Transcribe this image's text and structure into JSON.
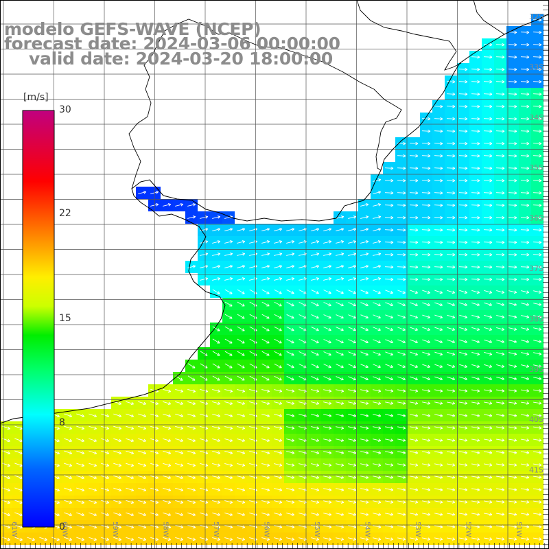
{
  "title": {
    "line1": "modelo GEFS-WAVE (NCEP)",
    "line2": "forecast date: 2024-03-06 00:00:00",
    "line3": "valid date: 2024-03-20 18:00:00"
  },
  "colorbar": {
    "unit": "[m/s]",
    "ticks": [
      "30",
      "22",
      "15",
      "8",
      "0"
    ],
    "tick_values": [
      30,
      22,
      15,
      8,
      0
    ],
    "colors": [
      "#0000ff",
      "#00aaff",
      "#00ffff",
      "#00ff00",
      "#ffff00",
      "#ff8000",
      "#ff0000",
      "#c00080"
    ]
  },
  "latitude_labels": [
    "32S",
    "33S",
    "34S",
    "35S",
    "36S",
    "37S",
    "38S",
    "39S",
    "40S",
    "41S"
  ],
  "longitude_labels": [
    "61W",
    "60W",
    "59W",
    "58W",
    "57W",
    "56W",
    "55W",
    "54W",
    "53W",
    "52W",
    "51W"
  ],
  "colors": {
    "land": "#ffffff",
    "coast": "#000000",
    "grid": "#555555",
    "arrow": "#ffffff"
  }
}
